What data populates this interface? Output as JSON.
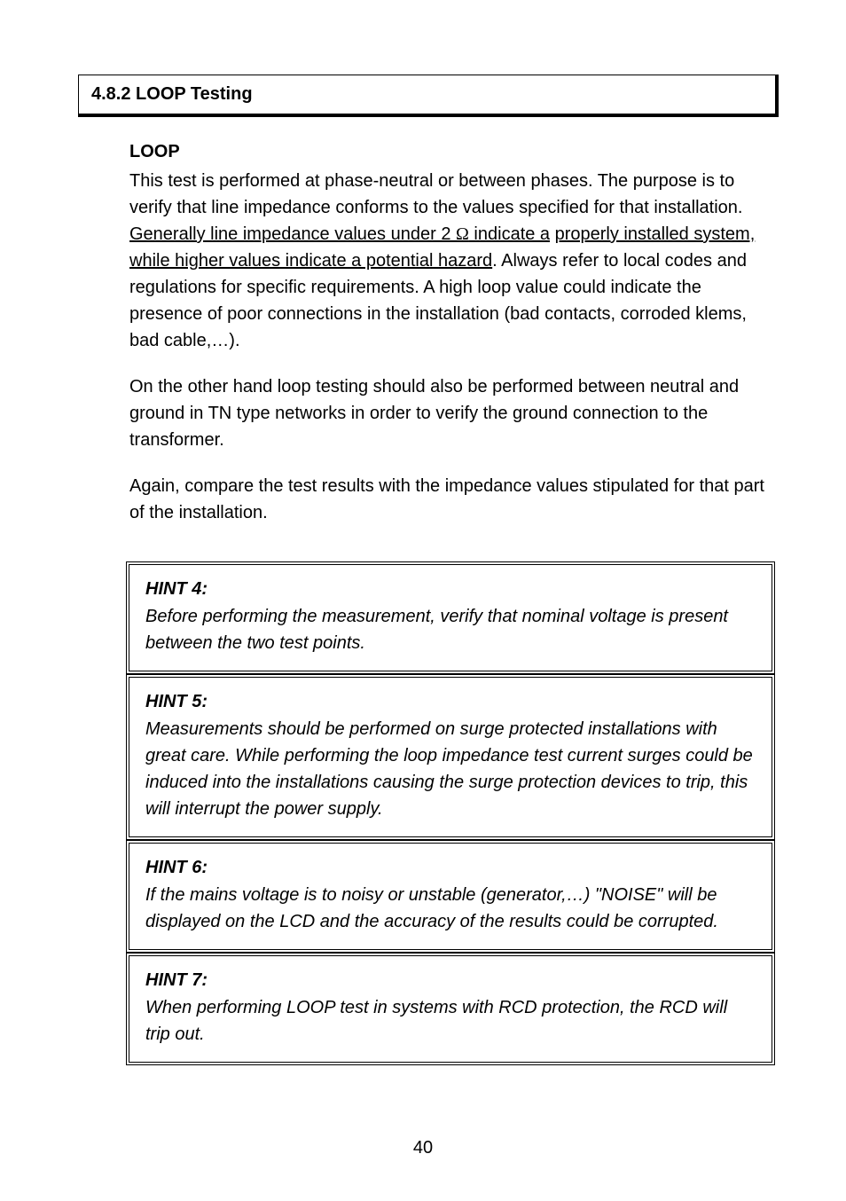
{
  "title_box": "4.8.2 LOOP Testing",
  "section_label": "LOOP",
  "intro_para_pre": "This test is performed at phase-neutral or between phases. The purpose is to verify that line impedance conforms to the values specified for that installation. ",
  "intro_para_underlined_1": "Generally line impedance values under 2 ",
  "intro_para_underlined_2": " indicate a",
  "intro_para_underlined_3": " properly installed system, while higher values indicate a potential hazard",
  "intro_para_post": ". Always refer to local codes and regulations for specific requirements. A high loop value could indicate the presence of poor connections in the installation (bad contacts, corroded klems, bad cable,…).",
  "omega": "Ω",
  "spec_text_1": "On the other hand loop testing should also be performed between neutral and ground in TN type networks in order to verify the ground connection to the transformer.",
  "spec_text_2": "Again, compare the test results with the impedance values stipulated for that part of the installation.",
  "hints": [
    {
      "label": "HINT 4:",
      "body": "Before performing the measurement, verify that nominal voltage is present between the two test points."
    },
    {
      "label": "HINT 5:",
      "body": "Measurements should be performed on surge protected installations with great care. While performing the loop impedance test current surges could be induced into the installations causing the surge protection devices to trip, this will interrupt the power supply."
    },
    {
      "label": "HINT 6:",
      "body": "If the mains voltage is to noisy or unstable (generator,…) \"NOISE\" will be displayed on the LCD and the accuracy of the results could be corrupted."
    },
    {
      "label": "HINT 7:",
      "body": "When performing LOOP test in systems with RCD protection, the RCD will trip out."
    }
  ],
  "page_number": "40"
}
